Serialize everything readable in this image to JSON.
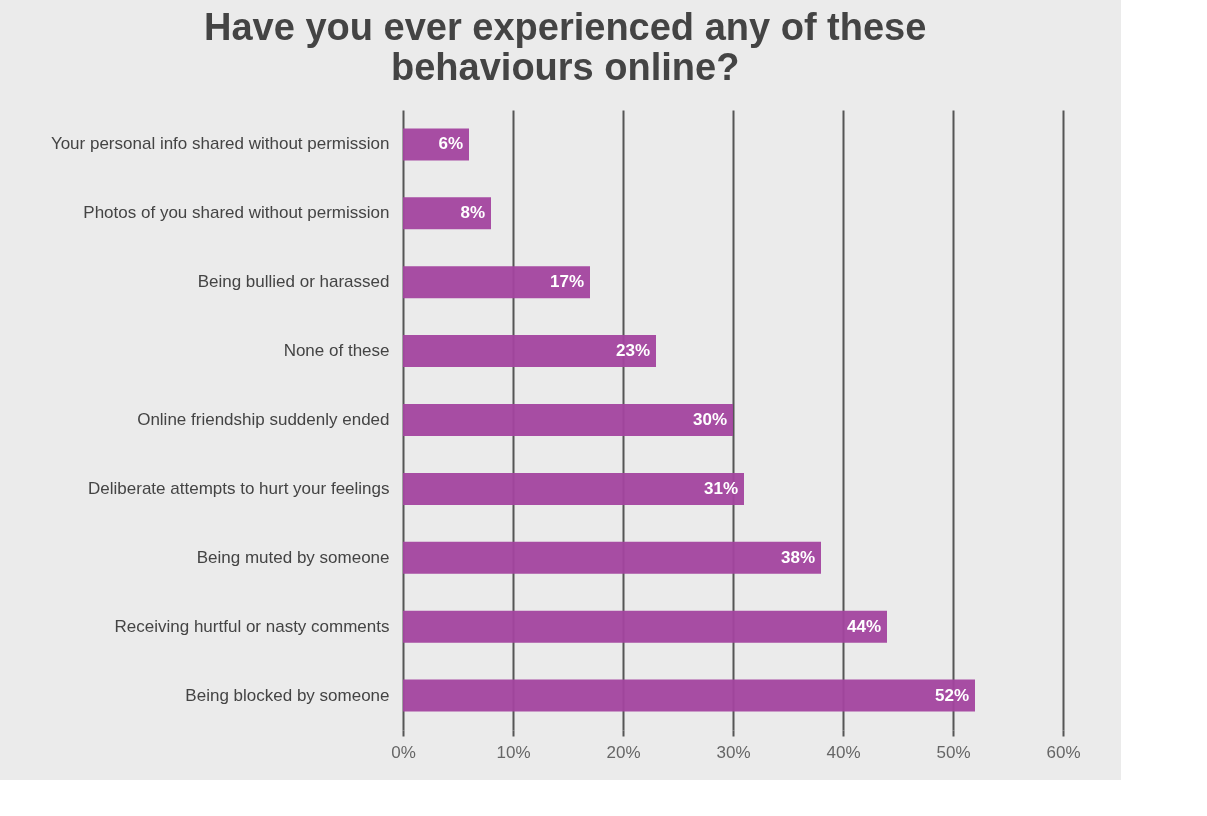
{
  "chart_data": {
    "type": "bar",
    "orientation": "horizontal",
    "title": "Have you ever experienced any of these behaviours online?",
    "categories": [
      "Your personal info shared without permission",
      "Photos of you shared without permission",
      "Being bullied or harassed",
      "None of these",
      "Online friendship suddenly ended",
      "Deliberate attempts to hurt your feelings",
      "Being muted by someone",
      "Receiving hurtful or nasty comments",
      "Being blocked by someone"
    ],
    "values": [
      6,
      8,
      17,
      23,
      30,
      31,
      38,
      44,
      52
    ],
    "value_labels": [
      "6%",
      "8%",
      "17%",
      "23%",
      "30%",
      "31%",
      "38%",
      "44%",
      "52%"
    ],
    "color": "#a3449f",
    "xlim": [
      0,
      60
    ],
    "xticks": [
      {
        "value": 0,
        "label": "0%"
      },
      {
        "value": 10,
        "label": "10%"
      },
      {
        "value": 20,
        "label": "20%"
      },
      {
        "value": 30,
        "label": "30%"
      },
      {
        "value": 40,
        "label": "40%"
      },
      {
        "value": 50,
        "label": "50%"
      },
      {
        "value": 60,
        "label": "60%"
      }
    ],
    "grid": "x"
  }
}
